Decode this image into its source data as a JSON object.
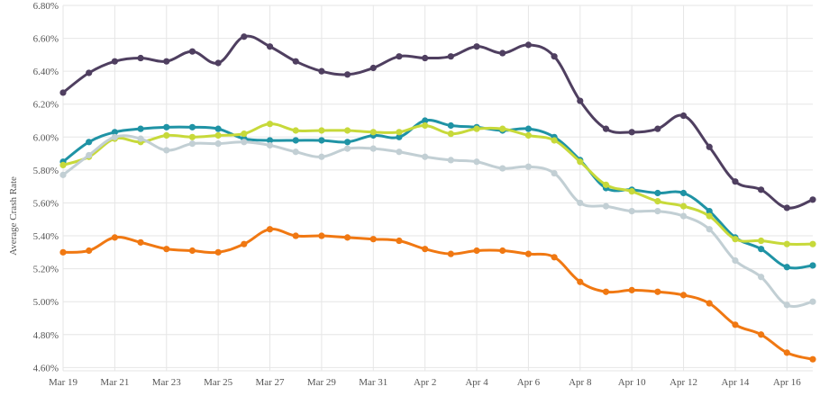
{
  "chart_data": {
    "type": "line",
    "ylabel": "Average Crash Rate",
    "xlabel": "",
    "title": "",
    "ylim": [
      4.58,
      6.8
    ],
    "y_ticks": [
      4.6,
      4.8,
      5.0,
      5.2,
      5.4,
      5.6,
      5.8,
      6.0,
      6.2,
      6.4,
      6.6,
      6.8
    ],
    "y_tick_labels": [
      "4.60%",
      "4.80%",
      "5.00%",
      "5.20%",
      "5.40%",
      "5.60%",
      "5.80%",
      "6.00%",
      "6.20%",
      "6.40%",
      "6.60%",
      "6.80%"
    ],
    "x_tick_labels": [
      "Mar 19",
      "Mar 21",
      "Mar 23",
      "Mar 25",
      "Mar 27",
      "Mar 29",
      "Mar 31",
      "Apr 2",
      "Apr 4",
      "Apr 6",
      "Apr 8",
      "Apr 10",
      "Apr 12",
      "Apr 14",
      "Apr 16"
    ],
    "x_tick_indices": [
      0,
      2,
      4,
      6,
      8,
      10,
      12,
      14,
      16,
      18,
      20,
      22,
      24,
      26,
      28
    ],
    "x": [
      "Mar 19",
      "Mar 20",
      "Mar 21",
      "Mar 22",
      "Mar 23",
      "Mar 24",
      "Mar 25",
      "Mar 26",
      "Mar 27",
      "Mar 28",
      "Mar 29",
      "Mar 30",
      "Mar 31",
      "Apr 1",
      "Apr 2",
      "Apr 3",
      "Apr 4",
      "Apr 5",
      "Apr 6",
      "Apr 7",
      "Apr 8",
      "Apr 9",
      "Apr 10",
      "Apr 11",
      "Apr 12",
      "Apr 13",
      "Apr 14",
      "Apr 15",
      "Apr 16",
      "Apr 17"
    ],
    "grid": true,
    "series": [
      {
        "color": "#4f3f60",
        "values": [
          6.27,
          6.39,
          6.46,
          6.48,
          6.46,
          6.52,
          6.45,
          6.61,
          6.55,
          6.46,
          6.4,
          6.38,
          6.42,
          6.49,
          6.48,
          6.49,
          6.55,
          6.51,
          6.56,
          6.49,
          6.22,
          6.05,
          6.03,
          6.05,
          6.13,
          5.94,
          5.73,
          5.68,
          5.57,
          5.62
        ]
      },
      {
        "color": "#1f93a5",
        "values": [
          5.85,
          5.97,
          6.03,
          6.05,
          6.06,
          6.06,
          6.05,
          5.99,
          5.98,
          5.98,
          5.98,
          5.97,
          6.01,
          6.0,
          6.1,
          6.07,
          6.06,
          6.04,
          6.05,
          6.0,
          5.86,
          5.69,
          5.68,
          5.66,
          5.66,
          5.55,
          5.39,
          5.32,
          5.21,
          5.22
        ]
      },
      {
        "color": "#c7d93a",
        "values": [
          5.83,
          5.88,
          5.99,
          5.97,
          6.01,
          6.0,
          6.01,
          6.02,
          6.08,
          6.04,
          6.04,
          6.04,
          6.03,
          6.03,
          6.07,
          6.02,
          6.05,
          6.05,
          6.01,
          5.98,
          5.85,
          5.71,
          5.67,
          5.61,
          5.58,
          5.52,
          5.38,
          5.37,
          5.35,
          5.35
        ]
      },
      {
        "color": "#c2cfd4",
        "values": [
          5.77,
          5.89,
          6.0,
          5.99,
          5.92,
          5.96,
          5.96,
          5.97,
          5.95,
          5.91,
          5.88,
          5.93,
          5.93,
          5.91,
          5.88,
          5.86,
          5.85,
          5.81,
          5.82,
          5.78,
          5.6,
          5.58,
          5.55,
          5.55,
          5.52,
          5.44,
          5.25,
          5.15,
          4.98,
          5.0
        ]
      },
      {
        "color": "#f07812",
        "values": [
          5.3,
          5.31,
          5.39,
          5.36,
          5.32,
          5.31,
          5.3,
          5.35,
          5.44,
          5.4,
          5.4,
          5.39,
          5.38,
          5.37,
          5.32,
          5.29,
          5.31,
          5.31,
          5.29,
          5.27,
          5.12,
          5.06,
          5.07,
          5.06,
          5.04,
          4.99,
          4.86,
          4.8,
          4.69,
          4.65
        ]
      }
    ]
  }
}
